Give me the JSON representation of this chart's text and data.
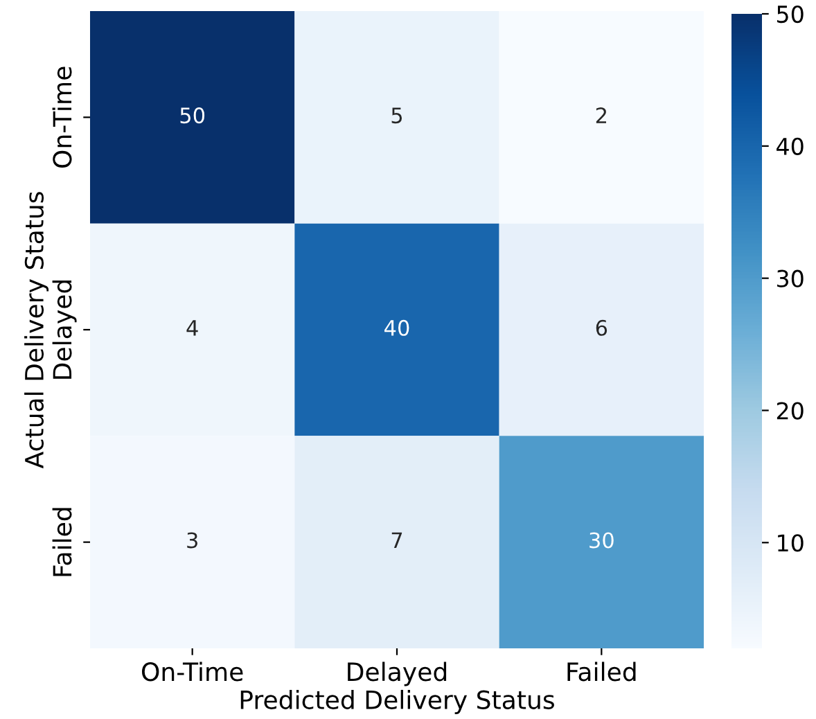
{
  "chart_data": {
    "type": "heatmap",
    "xlabel": "Predicted Delivery Status",
    "ylabel": "Actual Delivery Status",
    "categories": [
      "On-Time",
      "Delayed",
      "Failed"
    ],
    "y_categories": [
      "On-Time",
      "Delayed",
      "Failed"
    ],
    "cells": [
      [
        50,
        5,
        2
      ],
      [
        4,
        40,
        6
      ],
      [
        3,
        7,
        30
      ]
    ],
    "data_labels": true,
    "clim": [
      2,
      50
    ],
    "cticks": [
      10,
      20,
      30,
      40,
      50
    ]
  }
}
